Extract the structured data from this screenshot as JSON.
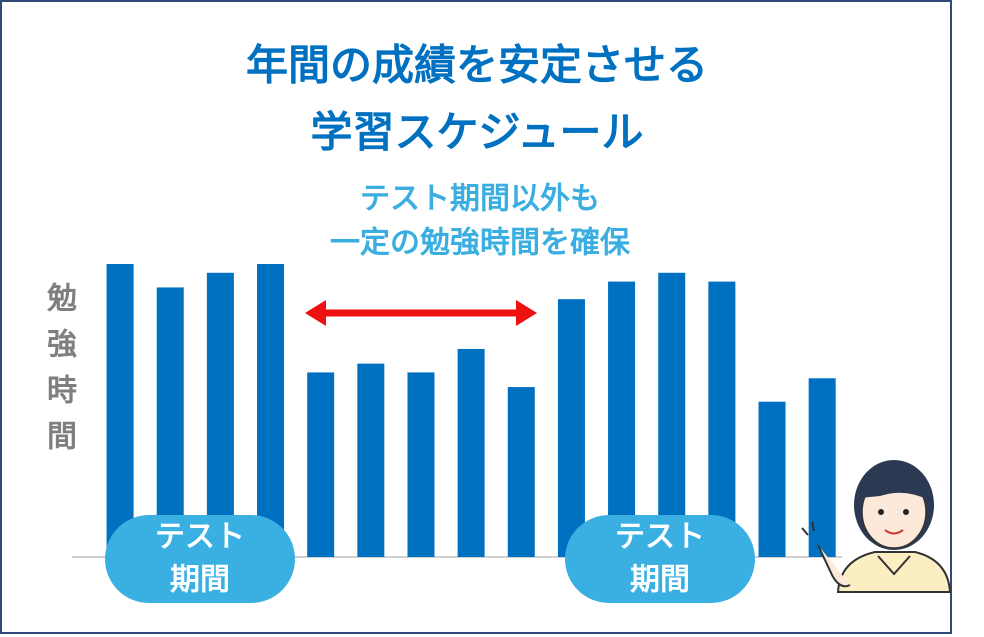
{
  "chart_data": {
    "type": "bar",
    "title": [
      "年間の成績を安定させる",
      "学習スケジュール"
    ],
    "subtitle": [
      "テスト期間以外も",
      "一定の勉強時間を確保"
    ],
    "y_label": "勉強時間",
    "annotations": [
      [
        "テスト",
        "期間"
      ],
      [
        "テスト",
        "期間"
      ]
    ],
    "categories": [
      null,
      null,
      null,
      null,
      null,
      null,
      null,
      null,
      null,
      null,
      null,
      null,
      null,
      null,
      null
    ],
    "values": [
      100,
      92,
      97,
      100,
      63,
      66,
      63,
      71,
      58,
      88,
      94,
      97,
      94,
      53,
      61
    ],
    "color": "#0070c0",
    "ylim": [
      0,
      100
    ]
  }
}
